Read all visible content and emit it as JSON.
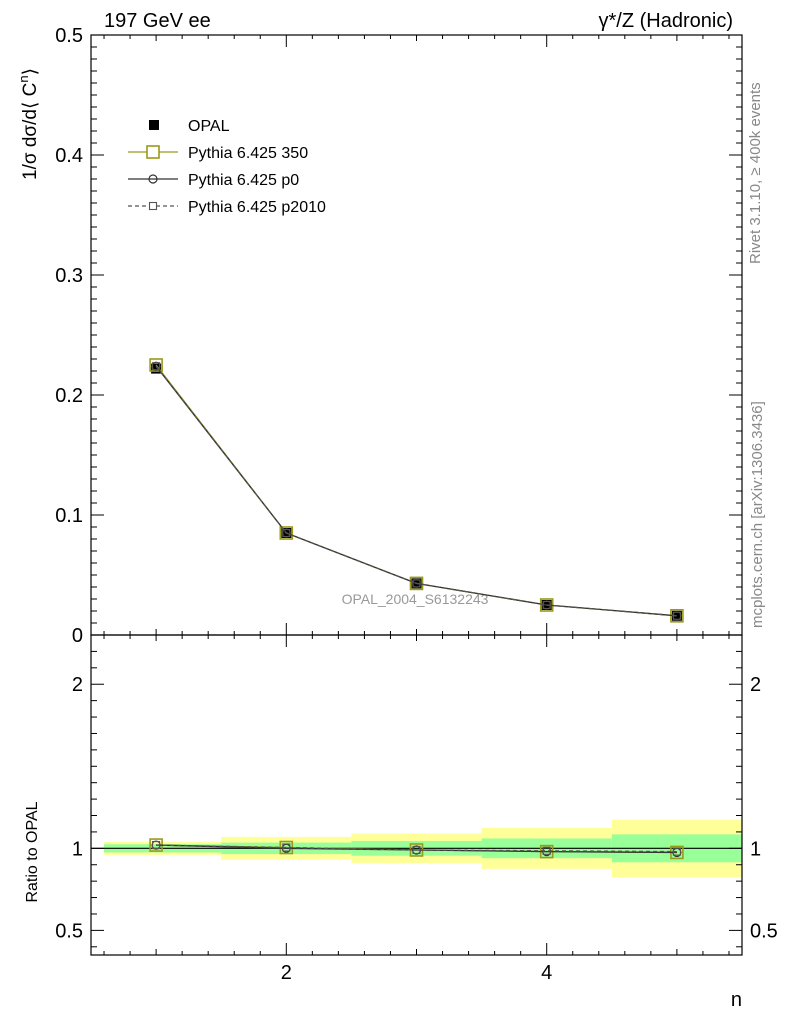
{
  "header": {
    "left_title": "197 GeV ee",
    "right_title": "γ*/Z (Hadronic)"
  },
  "side_labels": {
    "rivet": "Rivet 3.1.10, ≥ 400k events",
    "mcplots": "mcplots.cern.ch [arXiv:1306.3436]"
  },
  "watermark": "OPAL_2004_S6132243",
  "colors": {
    "data": "#000000",
    "pythia_350": "#9a9a1a",
    "pythia_p0": "#333333",
    "pythia_p2010": "#555555",
    "band_inner": "#99ff99",
    "band_outer": "#ffff99"
  },
  "chart_data": [
    {
      "type": "line",
      "panel": "main",
      "xlabel": "",
      "ylabel": "1/σ dσ/d⟨ C",
      "ylabel_sup": "n",
      "ylabel_close": "⟩",
      "xlim": [
        0.5,
        5.5
      ],
      "ylim": [
        0,
        0.5
      ],
      "yticks": [
        "0",
        "0.1",
        "0.2",
        "0.3",
        "0.4",
        "0.5"
      ],
      "ytick_values": [
        0,
        0.1,
        0.2,
        0.3,
        0.4,
        0.5
      ],
      "legend_position": "top-left",
      "series": [
        {
          "name": "OPAL",
          "style": "data",
          "x": [
            1,
            2,
            3,
            4,
            5
          ],
          "y": [
            0.222,
            0.085,
            0.043,
            0.025,
            0.016
          ]
        },
        {
          "name": "Pythia 6.425 350",
          "style": "line-square-olive",
          "x": [
            1,
            2,
            3,
            4,
            5
          ],
          "y": [
            0.225,
            0.085,
            0.043,
            0.025,
            0.016
          ]
        },
        {
          "name": "Pythia 6.425 p0",
          "style": "line-circle",
          "x": [
            1,
            2,
            3,
            4,
            5
          ],
          "y": [
            0.224,
            0.085,
            0.043,
            0.025,
            0.016
          ]
        },
        {
          "name": "Pythia 6.425 p2010",
          "style": "dashed-square",
          "x": [
            1,
            2,
            3,
            4,
            5
          ],
          "y": [
            0.224,
            0.085,
            0.043,
            0.025,
            0.016
          ]
        }
      ]
    },
    {
      "type": "line",
      "panel": "ratio",
      "xlabel": "n",
      "ylabel": "Ratio to OPAL",
      "xlim": [
        0.5,
        5.5
      ],
      "ylim": [
        0.35,
        2.3
      ],
      "xticks": [
        "2",
        "4"
      ],
      "xtick_values": [
        2,
        4
      ],
      "yticks": [
        "0.5",
        "1",
        "2"
      ],
      "ytick_values": [
        0.5,
        1,
        2
      ],
      "bands": {
        "x_edges": [
          [
            0.6,
            1.5
          ],
          [
            1.5,
            2.5
          ],
          [
            2.5,
            3.5
          ],
          [
            3.5,
            4.5
          ],
          [
            4.5,
            5.5
          ]
        ],
        "inner": [
          [
            0.975,
            1.025
          ],
          [
            0.965,
            1.035
          ],
          [
            0.955,
            1.045
          ],
          [
            0.94,
            1.06
          ],
          [
            0.915,
            1.085
          ]
        ],
        "outer": [
          [
            0.96,
            1.04
          ],
          [
            0.93,
            1.07
          ],
          [
            0.91,
            1.09
          ],
          [
            0.875,
            1.125
          ],
          [
            0.825,
            1.175
          ]
        ]
      },
      "series": [
        {
          "name": "Pythia 6.425 350",
          "x": [
            1,
            2,
            3,
            4,
            5
          ],
          "y": [
            1.02,
            1.005,
            0.99,
            0.98,
            0.975
          ]
        },
        {
          "name": "Pythia 6.425 p0",
          "x": [
            1,
            2,
            3,
            4,
            5
          ],
          "y": [
            1.02,
            1.0,
            0.99,
            0.98,
            0.975
          ]
        },
        {
          "name": "Pythia 6.425 p2010",
          "x": [
            1,
            2,
            3,
            4,
            5
          ],
          "y": [
            1.02,
            1.005,
            0.99,
            0.985,
            0.98
          ]
        }
      ]
    }
  ]
}
